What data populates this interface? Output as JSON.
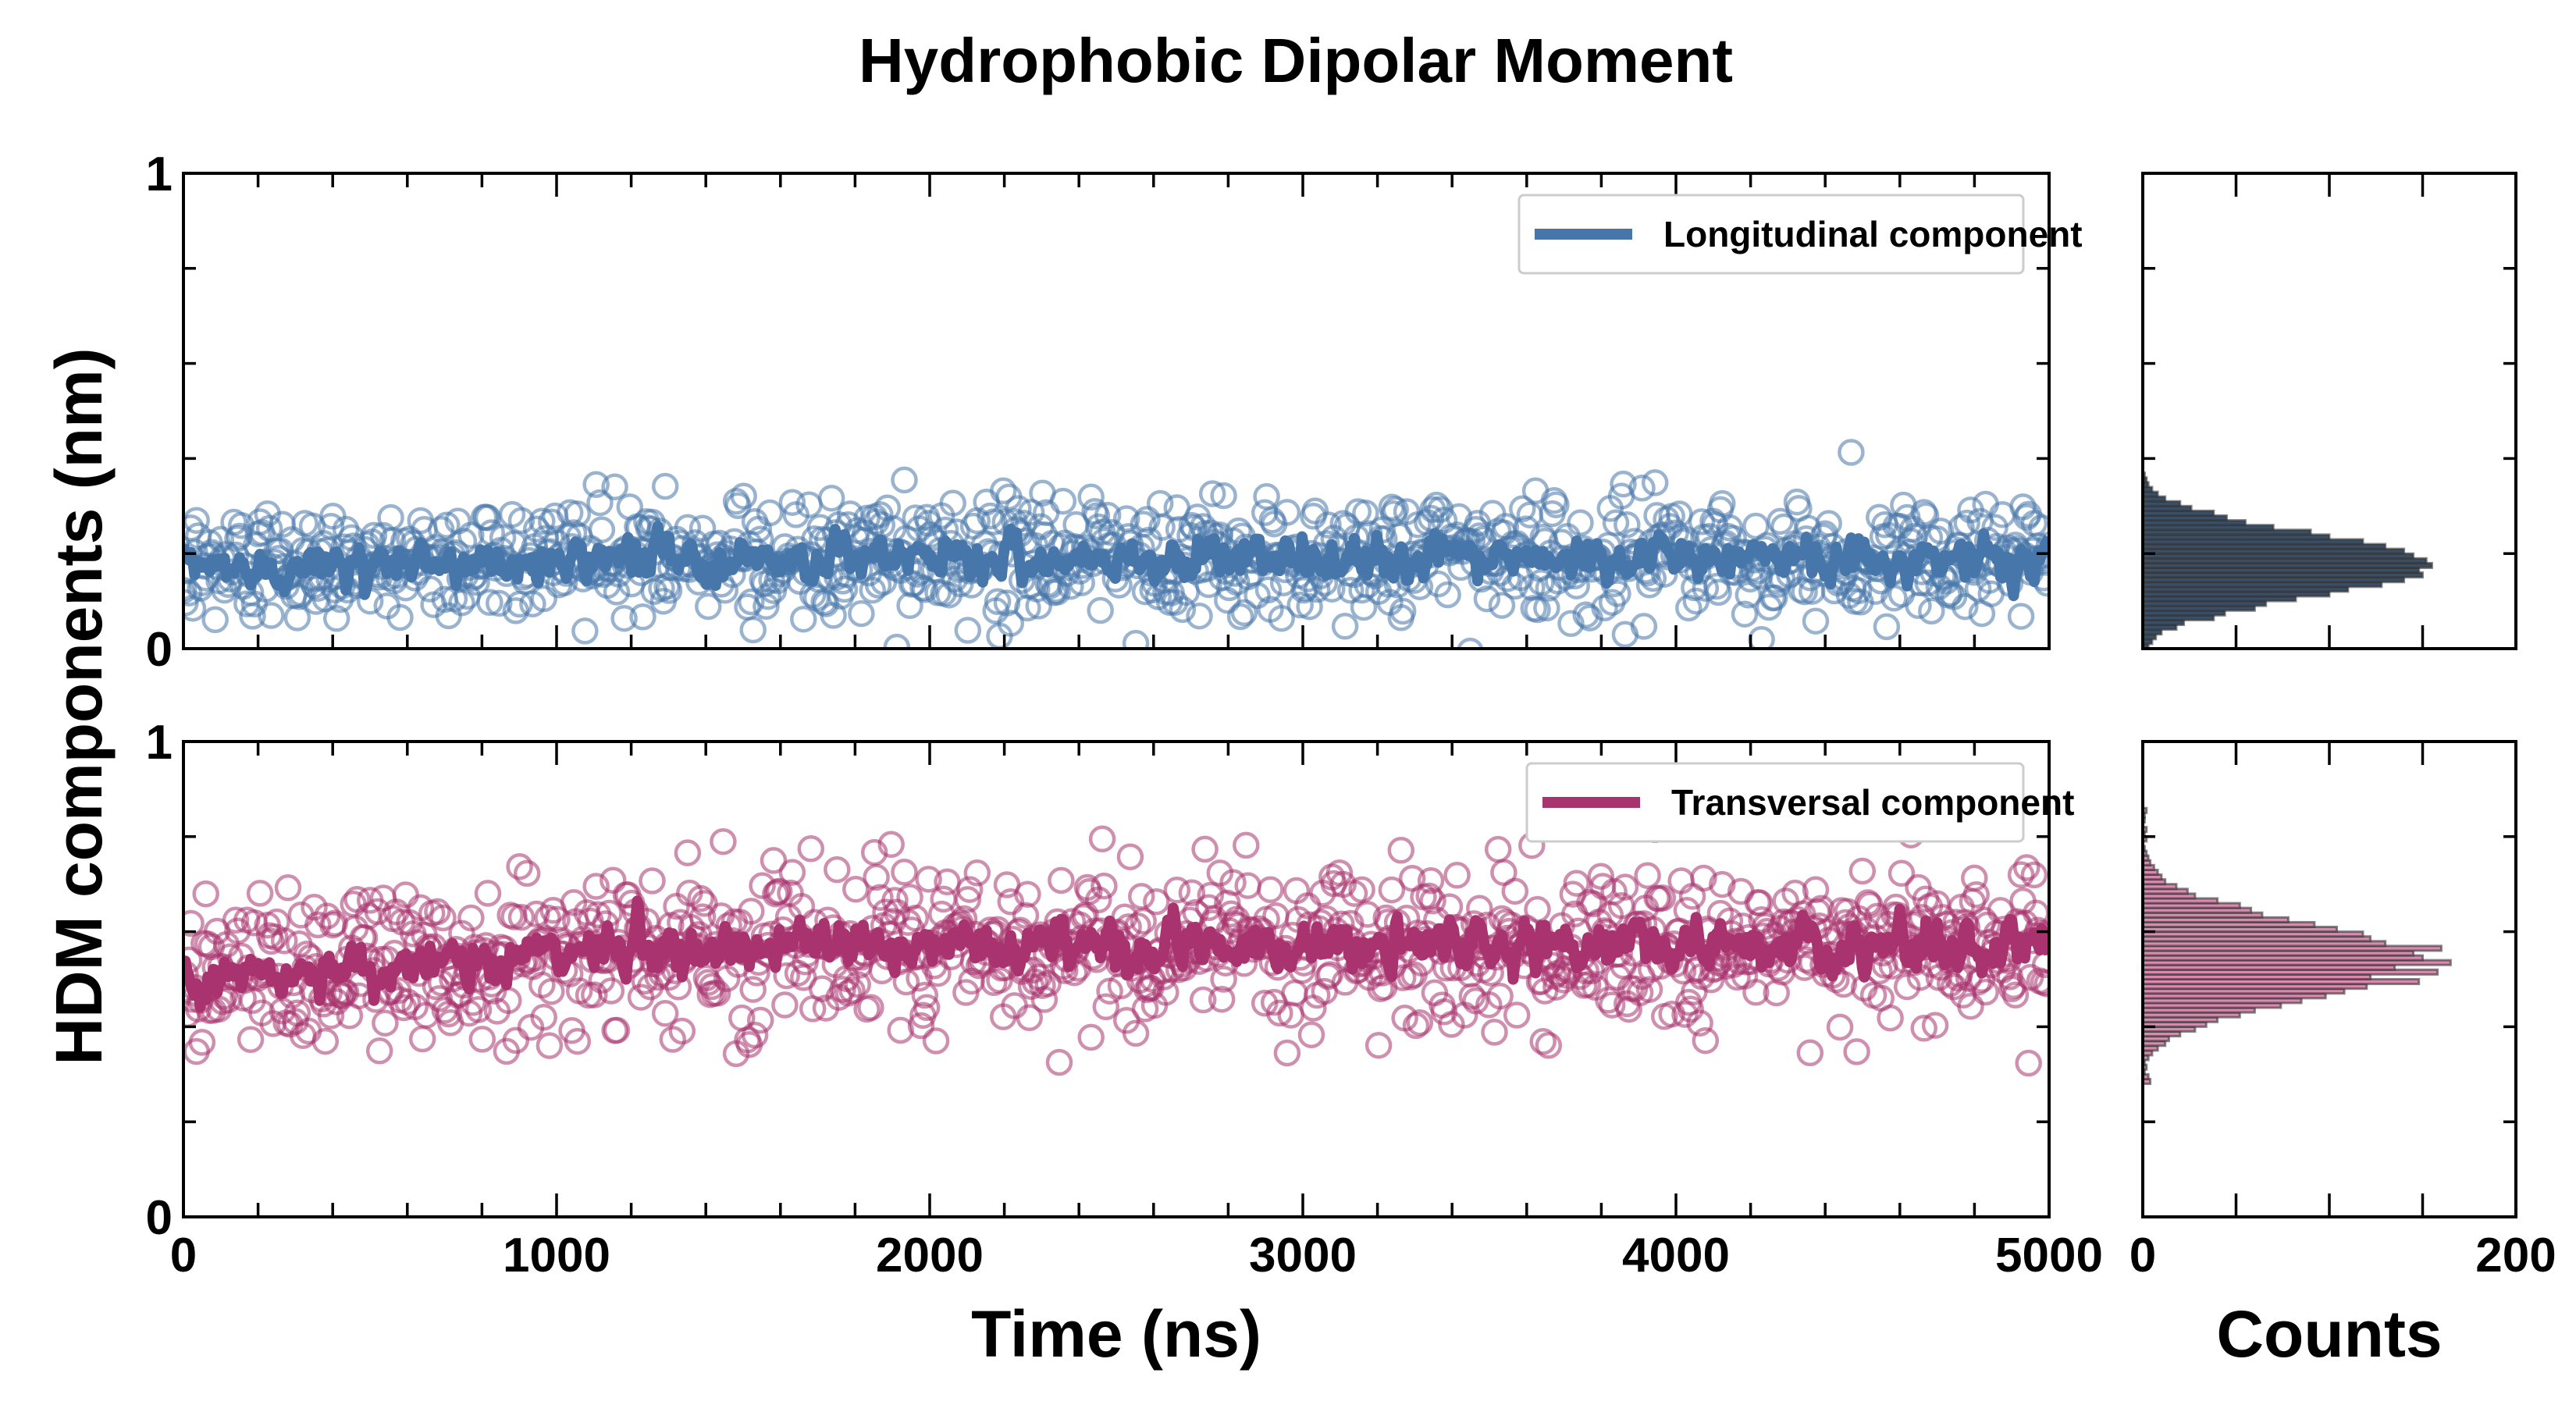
{
  "chart_data": [
    {
      "type": "scatter",
      "title": "Hydrophobic Dipolar Moment",
      "xlabel": "Time (ns)",
      "ylabel": "HDM components (nm)",
      "xlim": [
        0,
        5000
      ],
      "ylim": [
        0,
        1
      ],
      "x_tick_labels": [
        "0",
        "1000",
        "2000",
        "3000",
        "4000",
        "5000"
      ],
      "y_tick_labels": [
        "0",
        "1"
      ],
      "legend": "top-right",
      "panels": [
        {
          "name": "Longitudinal component",
          "color": "#4777aa",
          "marker": "open-circle",
          "n_points": 1000,
          "mean_start": 0.17,
          "mean_end": 0.19,
          "std": 0.065,
          "running_mean_std": 0.025
        },
        {
          "name": "Transversal component",
          "color": "#a8336e",
          "marker": "open-circle",
          "n_points": 1000,
          "mean_start": 0.5,
          "mean_end": 0.57,
          "std": 0.085,
          "running_mean_std": 0.03
        }
      ]
    },
    {
      "type": "bar",
      "orientation": "horizontal",
      "xlabel": "Counts",
      "xlim": [
        0,
        200
      ],
      "x_tick_labels": [
        "0",
        "200"
      ],
      "bin_width": 0.01,
      "series": [
        {
          "name": "Longitudinal component",
          "color": "#3a4f66",
          "bin_start": 0.0,
          "counts": [
            3,
            5,
            7,
            10,
            18,
            22,
            38,
            44,
            60,
            66,
            82,
            100,
            110,
            128,
            140,
            150,
            148,
            155,
            152,
            145,
            140,
            130,
            118,
            100,
            90,
            70,
            55,
            45,
            38,
            26,
            20,
            12,
            8,
            5,
            3,
            2,
            1
          ]
        },
        {
          "name": "Transversal component",
          "color": "#d98aae",
          "bin_start": 0.28,
          "counts": [
            4,
            3,
            1,
            2,
            1,
            3,
            5,
            8,
            12,
            14,
            20,
            28,
            34,
            40,
            52,
            60,
            74,
            85,
            98,
            108,
            120,
            148,
            122,
            158,
            135,
            165,
            150,
            145,
            160,
            130,
            122,
            118,
            104,
            92,
            78,
            64,
            58,
            52,
            40,
            28,
            24,
            18,
            12,
            10,
            8,
            6,
            4,
            3,
            2,
            1,
            0,
            2,
            1,
            2,
            0,
            1,
            1,
            2
          ]
        }
      ]
    }
  ]
}
